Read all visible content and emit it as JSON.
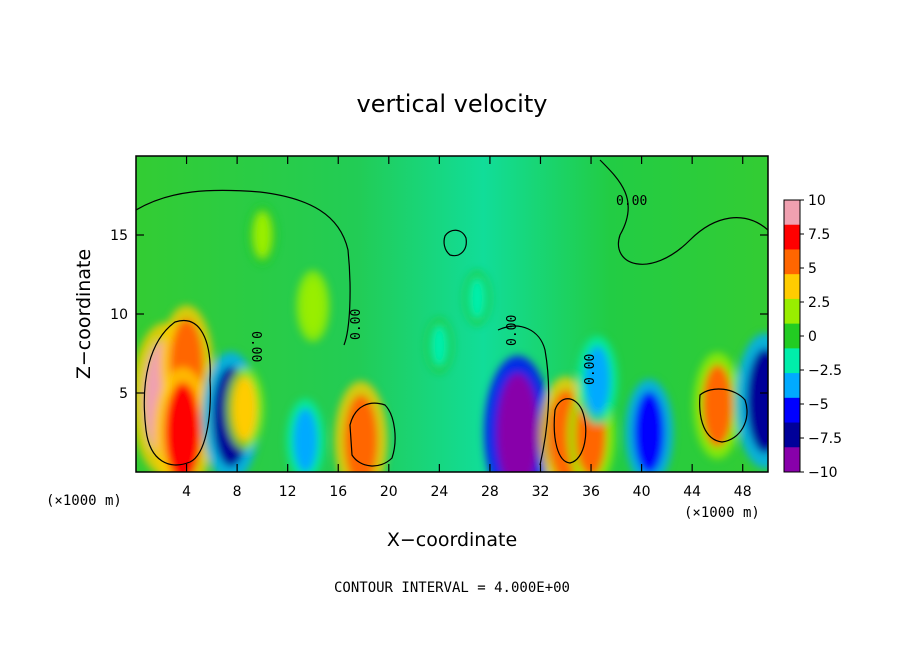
{
  "chart_data": {
    "type": "heatmap",
    "title": "vertical velocity",
    "xlabel": "X−coordinate",
    "ylabel": "Z−coordinate",
    "x_unit_label": "(×1000 m)",
    "y_unit_label": "(×1000 m)",
    "xlim": [
      0,
      50
    ],
    "ylim": [
      0,
      20
    ],
    "xticks": [
      4,
      8,
      12,
      16,
      20,
      24,
      28,
      32,
      36,
      40,
      44,
      48
    ],
    "yticks": [
      5,
      10,
      15
    ],
    "footer": "CONTOUR INTERVAL = 4.000E+00",
    "contour_label": "0.00",
    "colorbar": {
      "min": -10,
      "max": 10,
      "ticks": [
        10,
        7.5,
        5,
        2.5,
        0,
        -2.5,
        -5,
        -7.5,
        -10
      ],
      "tick_labels": [
        "10",
        "7.5",
        "5",
        "2.5",
        "0",
        "−2.5",
        "−5",
        "−7.5",
        "−10"
      ],
      "colors": [
        "#f0a0b0",
        "#ff0000",
        "#ff6600",
        "#ffcc00",
        "#99ee00",
        "#22cc22",
        "#00eeaa",
        "#00aaff",
        "#0000ff",
        "#000099",
        "#8800aa"
      ]
    },
    "features": [
      {
        "x": 2.3,
        "z": 4.6,
        "value": 10.0
      },
      {
        "x": 4.0,
        "z": 6.8,
        "value": 7.0
      },
      {
        "x": 3.7,
        "z": 2.5,
        "value": 8.0
      },
      {
        "x": 7.5,
        "z": 3.5,
        "value": -8.0
      },
      {
        "x": 8.6,
        "z": 4.0,
        "value": 4.0
      },
      {
        "x": 13.4,
        "z": 2.0,
        "value": -4.0
      },
      {
        "x": 17.8,
        "z": 2.0,
        "value": 7.0
      },
      {
        "x": 30.2,
        "z": 2.5,
        "value": -10.0
      },
      {
        "x": 34.0,
        "z": 2.3,
        "value": 7.0
      },
      {
        "x": 36.0,
        "z": 2.3,
        "value": 6.0
      },
      {
        "x": 36.5,
        "z": 5.8,
        "value": -4.5
      },
      {
        "x": 40.6,
        "z": 2.5,
        "value": -6.0
      },
      {
        "x": 46.0,
        "z": 4.2,
        "value": 6.0
      },
      {
        "x": 49.8,
        "z": 4.5,
        "value": -8.5
      },
      {
        "x": 14.0,
        "z": 10.5,
        "value": 3.0
      },
      {
        "x": 10.0,
        "z": 15.0,
        "value": 2.0
      },
      {
        "x": 24.0,
        "z": 8.0,
        "value": -1.5
      },
      {
        "x": 27.0,
        "z": 11.0,
        "value": -1.5
      }
    ]
  }
}
